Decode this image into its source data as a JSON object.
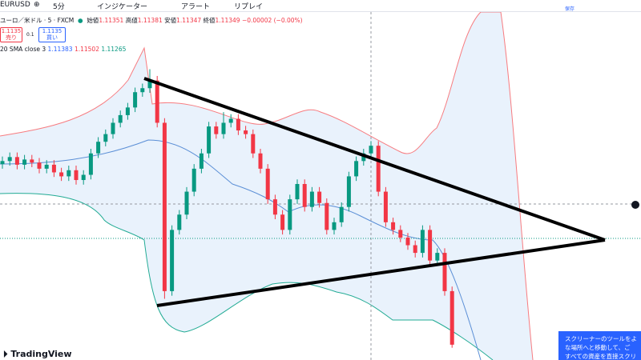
{
  "toolbar": {
    "symbol": "EURUSD",
    "interval": "5分",
    "indicators": "インジケーター",
    "alert": "アラート",
    "replay": "リプレイ",
    "save": "保存"
  },
  "legend": {
    "name": "ユーロ／米ドル · 5 · FXCM",
    "open_label": "始値",
    "open": "1.11351",
    "high_label": "高値",
    "high": "1.11381",
    "low_label": "安値",
    "low": "1.11347",
    "close_label": "終値",
    "close": "1.11349",
    "change": "−0.00002 (−0.00%)",
    "sell_price": "1.1135",
    "sell_label": "売り",
    "spread": "0.1",
    "buy_price": "1.1135",
    "buy_label": "買い",
    "indicator": "20 SMA close 3",
    "ind_values": [
      "1.11383",
      "1.11502",
      "1.11265"
    ]
  },
  "brand": "TradingView",
  "popup": [
    "スクリーナーのツールをよ",
    "な場所へと移動して、ご",
    "すべての資産を直接スクリ"
  ],
  "candles": {
    "ylim": [
      1.11295,
      1.1141
    ],
    "up_color": "#089981",
    "down_color": "#f23645",
    "open": [
      1.11359,
      1.1136,
      1.113613,
      1.113588,
      1.113605,
      1.113595,
      1.113575,
      1.113588,
      1.113563,
      1.11355,
      1.11357,
      1.113538,
      1.113555,
      1.113625,
      1.113663,
      1.113688,
      1.113725,
      1.11375,
      1.113775,
      1.113825,
      1.113838,
      1.113863,
      1.113725,
      1.113175,
      1.113375,
      1.113425,
      1.1135,
      1.113575,
      1.113625,
      1.113713,
      1.113688,
      1.113725,
      1.113738,
      1.1137,
      1.113688,
      1.113625,
      1.113575,
      1.113475,
      1.113425,
      1.113375,
      1.113475,
      1.113525,
      1.11345,
      1.1135,
      1.113463,
      1.113375,
      1.1134,
      1.11345,
      1.11355,
      1.1136,
      1.113625,
      1.11365,
      1.1135,
      1.1134,
      1.113375,
      1.11335,
      1.113325,
      1.1133,
      1.113375,
      1.113275,
      1.1133,
      1.113175
    ],
    "high": [
      1.113615,
      1.113628,
      1.113628,
      1.11362,
      1.11362,
      1.11361,
      1.113603,
      1.113603,
      1.113578,
      1.113585,
      1.113585,
      1.11357,
      1.11364,
      1.113678,
      1.113703,
      1.11374,
      1.113765,
      1.11379,
      1.11384,
      1.113853,
      1.1139,
      1.113878,
      1.11374,
      1.11339,
      1.11344,
      1.113515,
      1.11359,
      1.11364,
      1.113728,
      1.113728,
      1.11376,
      1.113753,
      1.113753,
      1.113715,
      1.113703,
      1.11364,
      1.11359,
      1.11349,
      1.11344,
      1.11349,
      1.11354,
      1.11354,
      1.113515,
      1.113515,
      1.113478,
      1.113415,
      1.113465,
      1.113565,
      1.113615,
      1.11364,
      1.113665,
      1.113665,
      1.113515,
      1.113415,
      1.11339,
      1.113365,
      1.11334,
      1.11339,
      1.11339,
      1.113315,
      1.113315,
      1.11319
    ],
    "low": [
      1.113575,
      1.113585,
      1.113573,
      1.113573,
      1.11358,
      1.11356,
      1.11356,
      1.113548,
      1.113535,
      1.113535,
      1.113523,
      1.113523,
      1.11354,
      1.11361,
      1.113648,
      1.113673,
      1.11371,
      1.113735,
      1.11376,
      1.11381,
      1.113823,
      1.11371,
      1.11315,
      1.11316,
      1.11336,
      1.11341,
      1.113485,
      1.11356,
      1.11361,
      1.113673,
      1.113673,
      1.11371,
      1.113685,
      1.113673,
      1.11361,
      1.11356,
      1.11346,
      1.11341,
      1.11336,
      1.11336,
      1.11346,
      1.113435,
      1.113435,
      1.113448,
      1.11336,
      1.11336,
      1.113385,
      1.113435,
      1.113535,
      1.113585,
      1.11361,
      1.113485,
      1.113385,
      1.11336,
      1.113335,
      1.11331,
      1.113285,
      1.113285,
      1.11326,
      1.11326,
      1.11316,
      1.11299
    ],
    "close": [
      1.1136,
      1.113613,
      1.113588,
      1.113605,
      1.113595,
      1.113575,
      1.113588,
      1.113563,
      1.11355,
      1.11357,
      1.113538,
      1.113555,
      1.113625,
      1.113663,
      1.113688,
      1.113725,
      1.11375,
      1.113775,
      1.113825,
      1.113838,
      1.113863,
      1.113725,
      1.113175,
      1.113375,
      1.113425,
      1.1135,
      1.113575,
      1.113625,
      1.113713,
      1.113688,
      1.113725,
      1.113738,
      1.1137,
      1.113688,
      1.113625,
      1.113575,
      1.113475,
      1.113425,
      1.113375,
      1.113475,
      1.113525,
      1.11345,
      1.1135,
      1.113463,
      1.113375,
      1.1134,
      1.11345,
      1.11355,
      1.1136,
      1.113625,
      1.11365,
      1.1135,
      1.1134,
      1.113375,
      1.11335,
      1.113325,
      1.1133,
      1.113375,
      1.113275,
      1.1133,
      1.113175,
      1.113
    ]
  }
}
